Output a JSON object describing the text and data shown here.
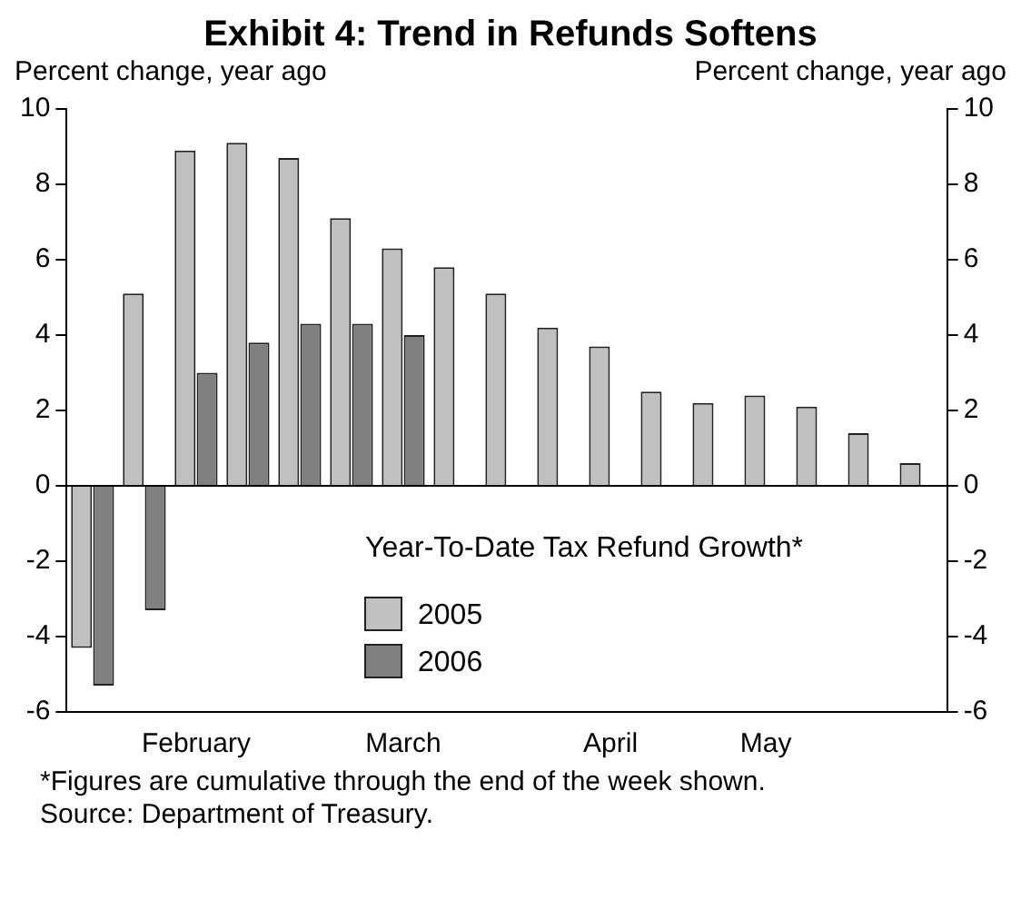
{
  "chart_data": {
    "type": "bar",
    "title": "Exhibit 4: Trend in Refunds Softens",
    "ylabel": "Percent change, year ago",
    "y2label": "Percent change, year ago",
    "categories": [
      null,
      null,
      "February",
      null,
      null,
      null,
      "March",
      null,
      null,
      null,
      "April",
      null,
      null,
      "May",
      null,
      null,
      null
    ],
    "series": [
      {
        "name": "2005",
        "color": "#c0c0c0",
        "values": [
          -4.3,
          5.1,
          8.9,
          9.1,
          8.7,
          7.1,
          6.3,
          5.8,
          5.1,
          4.2,
          3.7,
          2.5,
          2.2,
          2.4,
          2.1,
          1.4,
          0.6
        ]
      },
      {
        "name": "2006",
        "color": "#808080",
        "values": [
          -5.3,
          -3.3,
          3.0,
          3.8,
          4.3,
          4.3,
          4.0,
          null,
          null,
          null,
          null,
          null,
          null,
          null,
          null,
          null,
          null
        ]
      }
    ],
    "legend_title": "Year-To-Date Tax Refund Growth*",
    "legend": "bottom",
    "ref_lines": [
      {
        "axis": "y",
        "value": 0,
        "color": "#000000"
      }
    ],
    "ylim": [
      -6,
      10
    ],
    "yticks": [
      -6,
      -4,
      -2,
      0,
      2,
      4,
      6,
      8,
      10
    ],
    "y2lim": [
      -6,
      10
    ],
    "y2ticks": [
      -6,
      -4,
      -2,
      0,
      2,
      4,
      6,
      8,
      10
    ],
    "grid": false,
    "annotations": [
      "*Figures are cumulative through the end of the week shown.",
      "Source: Department of Treasury."
    ]
  }
}
